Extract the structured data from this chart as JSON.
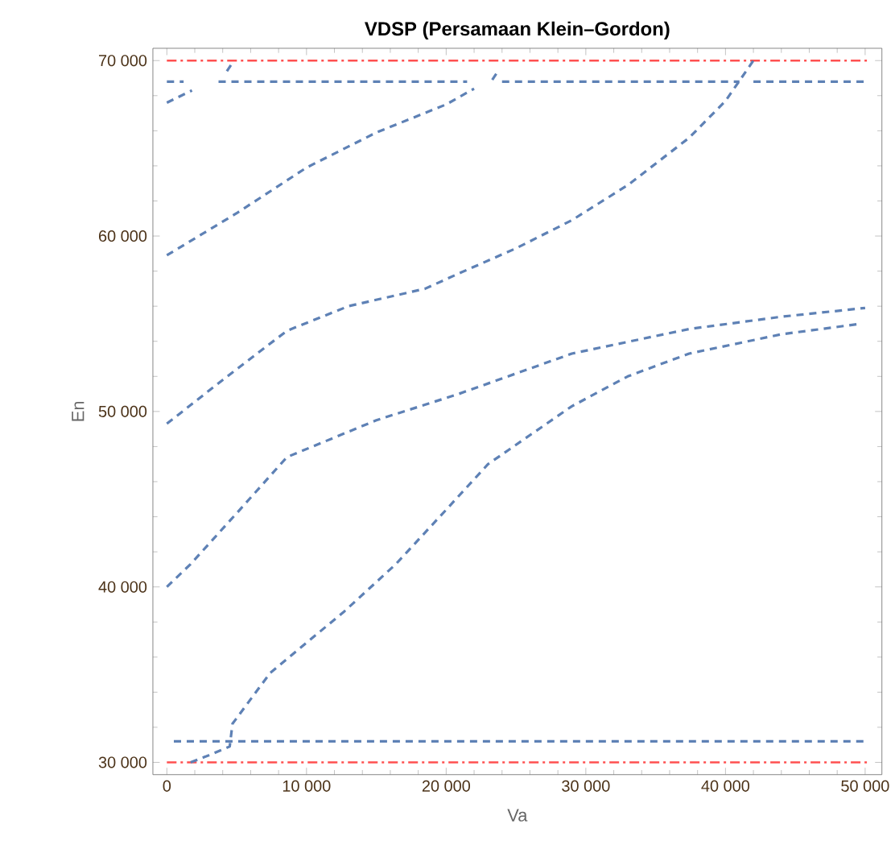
{
  "chart_data": {
    "type": "line",
    "title": "VDSP (Persamaan Klein–Gordon)",
    "xlabel": "Va",
    "ylabel": "En",
    "xlim": [
      -1000,
      51200
    ],
    "ylim": [
      29300,
      70700
    ],
    "xticks": [
      0,
      {
        "value": 10000,
        "label": "10 000"
      },
      {
        "value": 20000,
        "label": "20 000"
      },
      {
        "value": 30000,
        "label": "30 000"
      },
      {
        "value": 40000,
        "label": "40 000"
      },
      {
        "value": 50000,
        "label": "50 000"
      }
    ],
    "yticks": [
      {
        "value": 30000,
        "label": "30 000"
      },
      {
        "value": 40000,
        "label": "40 000"
      },
      {
        "value": 50000,
        "label": "50 000"
      },
      {
        "value": 60000,
        "label": "60 000"
      },
      {
        "value": 70000,
        "label": "70 000"
      }
    ],
    "marker": "none",
    "line_style": "dashed",
    "series": [
      {
        "color": "#5e81b5",
        "x": [
          0,
          5000,
          10000,
          15000,
          20000,
          22000
        ],
        "values": [
          58900,
          61300,
          63900,
          65900,
          67500,
          68400
        ]
      },
      {
        "color": "#5e81b5",
        "x": [
          0,
          4000,
          8600,
          13000,
          18500,
          21000,
          25000,
          29000,
          33000,
          37400,
          40000,
          42000
        ],
        "values": [
          49300,
          51800,
          54600,
          56000,
          57000,
          57900,
          59300,
          60900,
          62900,
          65600,
          67700,
          70000
        ]
      },
      {
        "color": "#5e81b5",
        "x": [
          0,
          1700,
          5000,
          8600,
          15000,
          20900,
          29000,
          37400,
          44000,
          50000
        ],
        "values": [
          40000,
          41300,
          44200,
          47400,
          49500,
          51000,
          53300,
          54700,
          55400,
          55900
        ]
      },
      {
        "color": "#5e81b5",
        "x": [
          1700,
          3000,
          4500,
          4700,
          7400,
          12700,
          16400,
          20000,
          23000,
          29000,
          33000,
          37400,
          44000,
          49700
        ],
        "values": [
          30000,
          30400,
          30900,
          32200,
          35100,
          38600,
          41300,
          44400,
          47000,
          50300,
          52000,
          53300,
          54400,
          55000
        ]
      },
      {
        "color": "#5e81b5",
        "x": [
          500,
          50000
        ],
        "values": [
          31200,
          31200
        ]
      },
      {
        "color": "#5e81b5",
        "x": [
          0,
          1200,
          1300,
          3700,
          21500,
          21600,
          24000,
          41000,
          41100,
          42000,
          50000
        ],
        "values": [
          68800,
          68800,
          null,
          68800,
          68800,
          null,
          68800,
          68800,
          null,
          68800,
          68800
        ]
      },
      {
        "color": "#5e81b5",
        "x": [
          0,
          1800
        ],
        "values": [
          67600,
          68300
        ]
      },
      {
        "color": "#5e81b5",
        "x": [
          4300,
          4800
        ],
        "values": [
          69400,
          70000
        ]
      },
      {
        "color": "#5e81b5",
        "x": [
          23300,
          23800
        ],
        "values": [
          68900,
          69500
        ]
      }
    ],
    "ref_lines": [
      {
        "axis": "y",
        "value": 70000,
        "color": "#ff5050",
        "line_style": "dashdot"
      },
      {
        "axis": "y",
        "value": 30000,
        "color": "#ff5050",
        "line_style": "dashdot"
      }
    ]
  }
}
